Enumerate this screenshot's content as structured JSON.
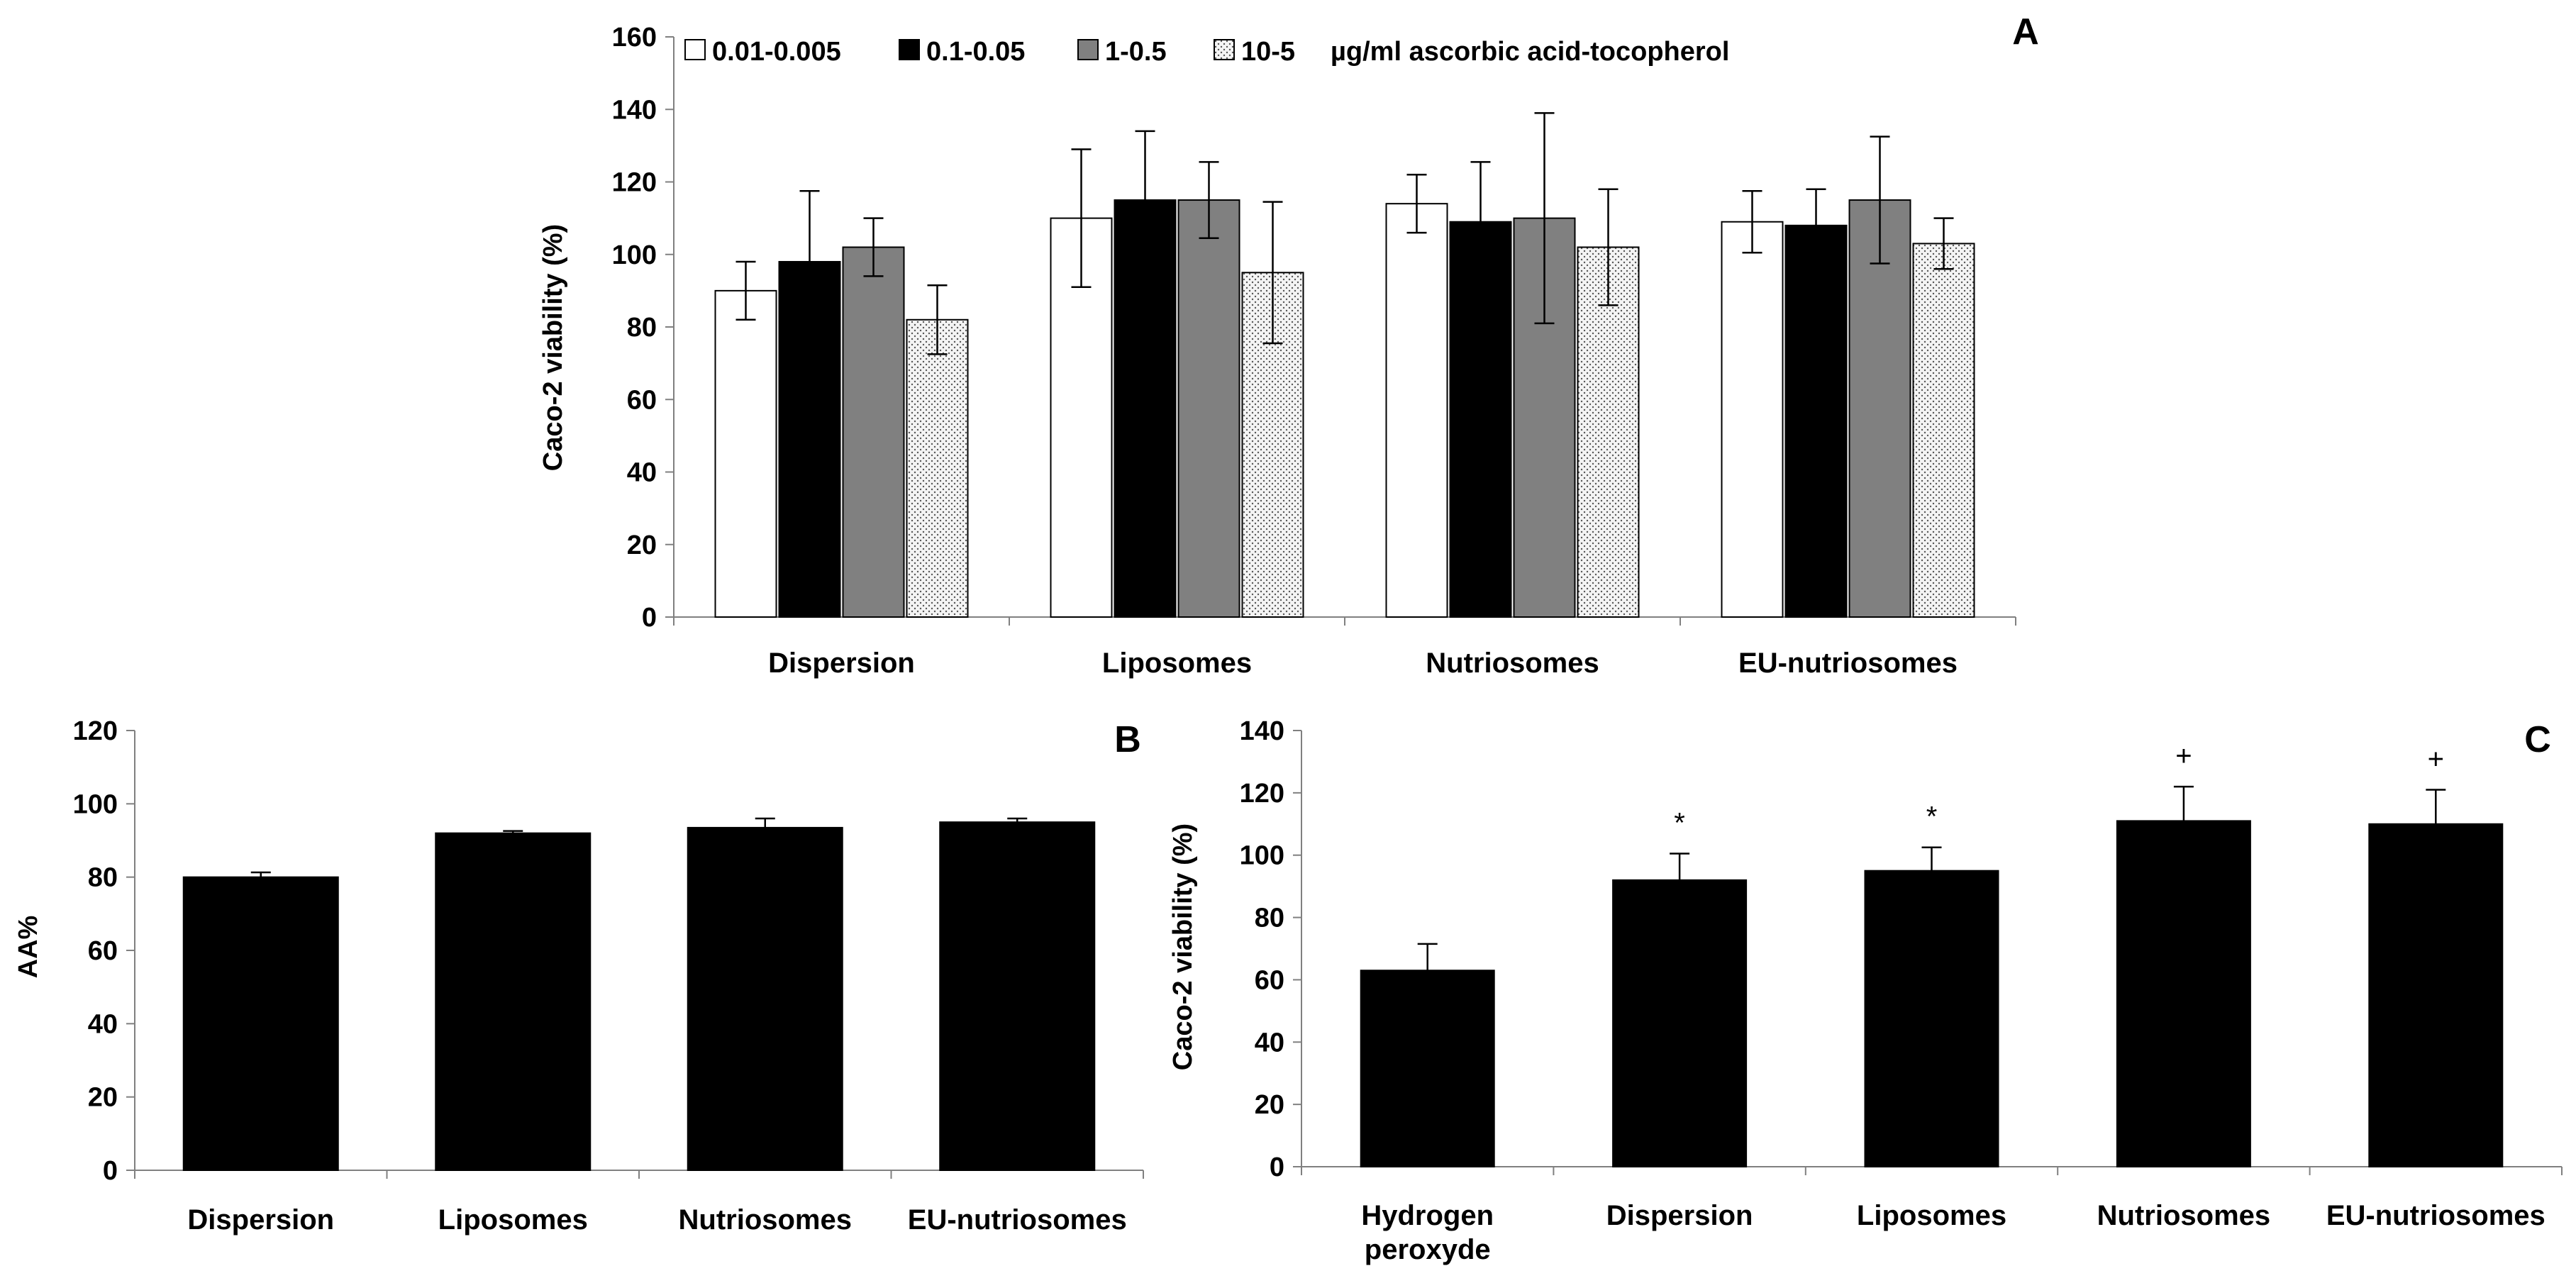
{
  "chart_data": [
    {
      "panel": "A",
      "type": "bar",
      "title": "",
      "xlabel": "",
      "ylabel": "Caco-2 viability (%)",
      "ylim": [
        0,
        160
      ],
      "yticks": [
        0,
        20,
        40,
        60,
        80,
        100,
        120,
        140,
        160
      ],
      "categories": [
        "Dispersion",
        "Liposomes",
        "Nutriosomes",
        "EU-nutriosomes"
      ],
      "legend_suffix": "µg/ml ascorbic acid-tocopherol",
      "legend_position": "top",
      "series": [
        {
          "name": "0.01-0.005",
          "fill": "#ffffff",
          "pattern": "none",
          "values": [
            90,
            110,
            114,
            109
          ],
          "errors": [
            8,
            19,
            8,
            8.5
          ]
        },
        {
          "name": "0.1-0.05",
          "fill": "#000000",
          "pattern": "none",
          "values": [
            98,
            115,
            109,
            108
          ],
          "errors": [
            19.5,
            19,
            16.5,
            10
          ]
        },
        {
          "name": "1-0.5",
          "fill": "#808080",
          "pattern": "none",
          "values": [
            102,
            115,
            110,
            115
          ],
          "errors": [
            8,
            10.5,
            29,
            17.5
          ]
        },
        {
          "name": "10-5",
          "fill": "#ececec",
          "pattern": "dots",
          "values": [
            82,
            95,
            102,
            103
          ],
          "errors": [
            9.5,
            19.5,
            16,
            7
          ]
        }
      ]
    },
    {
      "panel": "B",
      "type": "bar",
      "title": "",
      "xlabel": "",
      "ylabel": "AA%",
      "ylim": [
        0,
        120
      ],
      "yticks": [
        0,
        20,
        40,
        60,
        80,
        100,
        120
      ],
      "categories": [
        "Dispersion",
        "Liposomes",
        "Nutriosomes",
        "EU-nutriosomes"
      ],
      "series": [
        {
          "name": "AA%",
          "fill": "#000000",
          "values": [
            80,
            92,
            93.5,
            95
          ],
          "errors": [
            1.3,
            0.6,
            2.5,
            1
          ]
        }
      ]
    },
    {
      "panel": "C",
      "type": "bar",
      "title": "",
      "xlabel": "",
      "ylabel": "Caco-2 viability (%)",
      "ylim": [
        0,
        140
      ],
      "yticks": [
        0,
        20,
        40,
        60,
        80,
        100,
        120,
        140
      ],
      "categories": [
        "Hydrogen peroxyde",
        "Dispersion",
        "Liposomes",
        "Nutriosomes",
        "EU-nutriosomes"
      ],
      "series": [
        {
          "name": "Caco-2 viability",
          "fill": "#000000",
          "values": [
            63,
            92,
            95,
            111,
            110
          ],
          "errors": [
            8.5,
            8.5,
            7.5,
            11,
            11
          ]
        }
      ],
      "annotations": [
        "",
        "*",
        "*",
        "+",
        "+"
      ]
    }
  ]
}
